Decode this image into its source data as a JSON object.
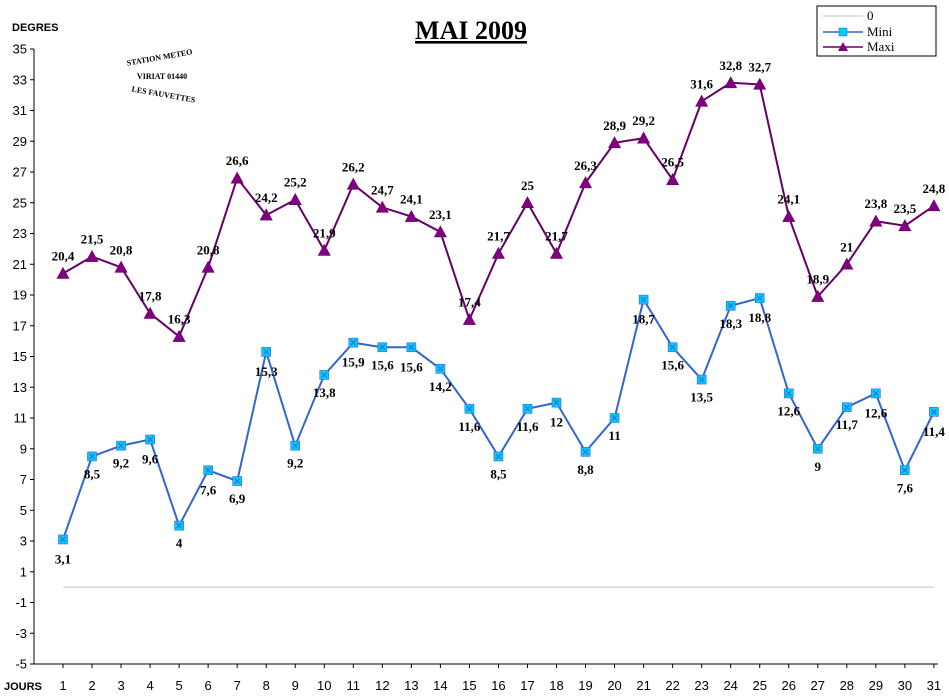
{
  "chart_data": {
    "type": "line",
    "title": "MAI 2009",
    "ylabel": "DEGRES",
    "xlabel": "JOURS",
    "ylim": [
      -5,
      35
    ],
    "yticks": [
      -5,
      -3,
      -1,
      1,
      3,
      5,
      7,
      9,
      11,
      13,
      15,
      17,
      19,
      21,
      23,
      25,
      27,
      29,
      31,
      33,
      35
    ],
    "categories": [
      "1",
      "2",
      "3",
      "4",
      "5",
      "6",
      "7",
      "8",
      "9",
      "10",
      "11",
      "12",
      "13",
      "14",
      "15",
      "16",
      "17",
      "18",
      "19",
      "20",
      "21",
      "22",
      "23",
      "24",
      "25",
      "26",
      "27",
      "28",
      "29",
      "30",
      "31"
    ],
    "series": [
      {
        "name": "0",
        "color": "#c0c0c0",
        "marker": "none",
        "values": [
          0,
          0,
          0,
          0,
          0,
          0,
          0,
          0,
          0,
          0,
          0,
          0,
          0,
          0,
          0,
          0,
          0,
          0,
          0,
          0,
          0,
          0,
          0,
          0,
          0,
          0,
          0,
          0,
          0,
          0,
          0
        ]
      },
      {
        "name": "Mini",
        "color": "#3366cc",
        "marker_color": "#00ccff",
        "marker": "square-x",
        "values": [
          3.1,
          8.5,
          9.2,
          9.6,
          4,
          7.6,
          6.9,
          15.3,
          9.2,
          13.8,
          15.9,
          15.6,
          15.6,
          14.2,
          11.6,
          8.5,
          11.6,
          12,
          8.8,
          11,
          18.7,
          15.6,
          13.5,
          18.3,
          18.8,
          12.6,
          9,
          11.7,
          12.6,
          7.6,
          11.4
        ],
        "labels": [
          "3,1",
          "8,5",
          "9,2",
          "9,6",
          "4",
          "7,6",
          "6,9",
          "15,3",
          "9,2",
          "13,8",
          "15,9",
          "15,6",
          "15,6",
          "14,2",
          "11,6",
          "8,5",
          "11,6",
          "12",
          "8,8",
          "11",
          "18,7",
          "15,6",
          "13,5",
          "18,3",
          "18,8",
          "12,6",
          "9",
          "11,7",
          "12,6",
          "7,6",
          "11,4"
        ]
      },
      {
        "name": "Maxi",
        "color": "#660066",
        "marker_color": "#800080",
        "marker": "triangle",
        "values": [
          20.4,
          21.5,
          20.8,
          17.8,
          16.3,
          20.8,
          26.6,
          24.2,
          25.2,
          21.9,
          26.2,
          24.7,
          24.1,
          23.1,
          17.4,
          21.7,
          25,
          21.7,
          26.3,
          28.9,
          29.2,
          26.5,
          31.6,
          32.8,
          32.7,
          24.1,
          18.9,
          21,
          23.8,
          23.5,
          24.8
        ],
        "labels": [
          "20,4",
          "21,5",
          "20,8",
          "17,8",
          "16,3",
          "20,8",
          "26,6",
          "24,2",
          "25,2",
          "21,9",
          "26,2",
          "24,7",
          "24,1",
          "23,1",
          "17,4",
          "21,7",
          "25",
          "21,7",
          "26,3",
          "28,9",
          "29,2",
          "26,5",
          "31,6",
          "32,8",
          "32,7",
          "24,1",
          "18,9",
          "21",
          "23,8",
          "23,5",
          "24,8"
        ]
      }
    ],
    "legend_position": "top-right",
    "grid": false
  },
  "stamp": {
    "line1": "STATION METEO",
    "line2": "VIRIAT 01440",
    "line3": "LES FAUVETTES"
  }
}
